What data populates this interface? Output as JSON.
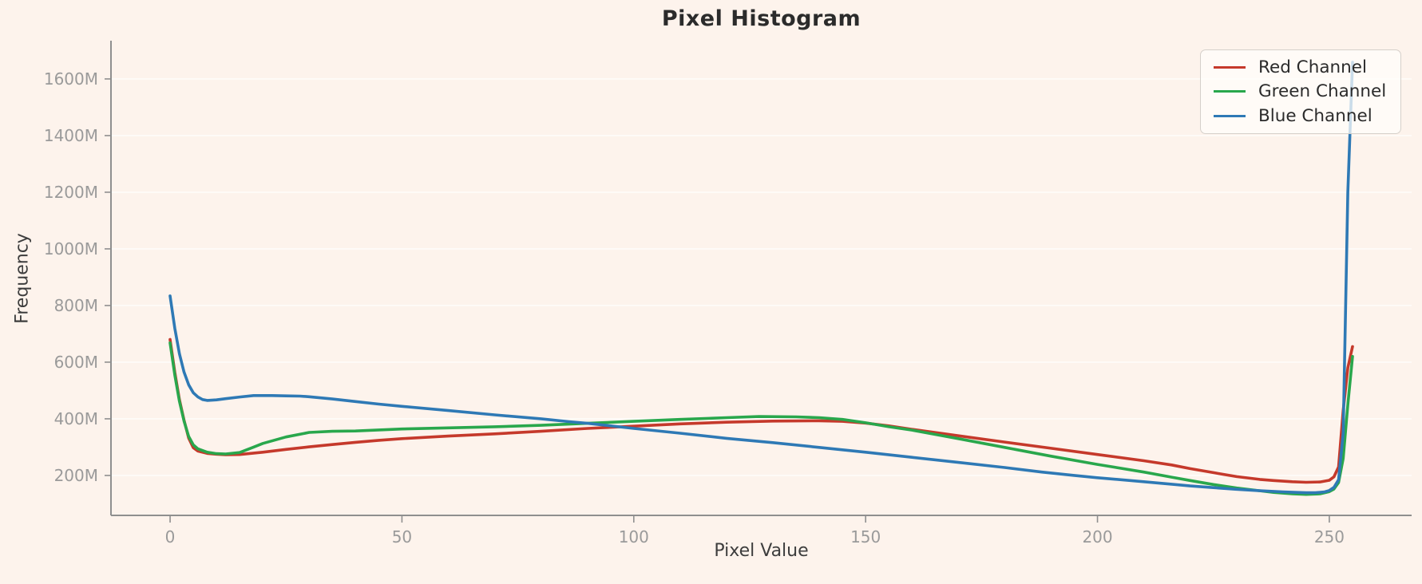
{
  "figure": {
    "title": "Pixel Histogram",
    "xlabel": "Pixel Value",
    "ylabel": "Frequency",
    "background_color": "#fdf3ec"
  },
  "style": {
    "grid_color": "rgba(255,255,255,0.85)",
    "spine_color": "#8f8f8f",
    "tick_color": "#8f8f8f",
    "tick_label_color": "#9a9a9a",
    "title_color": "#2b2b2b",
    "axis_label_color": "#3d3d3d",
    "legend_text_color": "#2b2b2b",
    "legend_border_color": "#d5d0ca",
    "legend_background": "rgba(255,254,251,0.75)"
  },
  "chart_data": {
    "type": "line",
    "title": "Pixel Histogram",
    "xlabel": "Pixel Value",
    "ylabel": "Frequency",
    "grid": "horizontal-only",
    "legend_position": "upper right",
    "x_ticks": [
      0,
      50,
      100,
      150,
      200,
      250
    ],
    "y_ticks": [
      200,
      400,
      600,
      800,
      1000,
      1200,
      1400,
      1600
    ],
    "y_tick_suffix": "M",
    "y_unit": "millions of pixels",
    "xlim": [
      -12.75,
      267.75
    ],
    "ylim_millions": [
      59,
      1735
    ],
    "series": [
      {
        "name": "Red Channel",
        "color": "#c5392b",
        "points": [
          [
            0,
            680
          ],
          [
            1,
            565
          ],
          [
            2,
            468
          ],
          [
            3,
            395
          ],
          [
            4,
            332
          ],
          [
            5,
            298
          ],
          [
            6,
            286
          ],
          [
            8,
            278
          ],
          [
            10,
            275
          ],
          [
            12,
            273
          ],
          [
            15,
            274
          ],
          [
            20,
            282
          ],
          [
            25,
            292
          ],
          [
            30,
            301
          ],
          [
            35,
            309
          ],
          [
            40,
            317
          ],
          [
            45,
            324
          ],
          [
            50,
            330
          ],
          [
            60,
            339
          ],
          [
            70,
            347
          ],
          [
            80,
            356
          ],
          [
            90,
            366
          ],
          [
            100,
            374
          ],
          [
            110,
            382
          ],
          [
            120,
            388
          ],
          [
            130,
            392
          ],
          [
            140,
            393
          ],
          [
            145,
            391
          ],
          [
            150,
            385
          ],
          [
            155,
            375
          ],
          [
            160,
            363
          ],
          [
            170,
            340
          ],
          [
            180,
            318
          ],
          [
            190,
            296
          ],
          [
            200,
            274
          ],
          [
            210,
            252
          ],
          [
            216,
            237
          ],
          [
            220,
            224
          ],
          [
            225,
            210
          ],
          [
            230,
            196
          ],
          [
            235,
            186
          ],
          [
            238,
            182
          ],
          [
            242,
            178
          ],
          [
            245,
            176
          ],
          [
            248,
            177
          ],
          [
            250,
            183
          ],
          [
            251,
            195
          ],
          [
            252,
            230
          ],
          [
            253,
            430
          ],
          [
            254,
            580
          ],
          [
            255,
            655
          ]
        ]
      },
      {
        "name": "Green Channel",
        "color": "#29a74c",
        "points": [
          [
            0,
            668
          ],
          [
            1,
            555
          ],
          [
            2,
            462
          ],
          [
            3,
            392
          ],
          [
            4,
            338
          ],
          [
            5,
            308
          ],
          [
            6,
            294
          ],
          [
            8,
            282
          ],
          [
            10,
            277
          ],
          [
            12,
            276
          ],
          [
            15,
            281
          ],
          [
            18,
            300
          ],
          [
            20,
            313
          ],
          [
            25,
            336
          ],
          [
            30,
            352
          ],
          [
            35,
            356
          ],
          [
            40,
            357
          ],
          [
            50,
            364
          ],
          [
            60,
            368
          ],
          [
            70,
            372
          ],
          [
            80,
            377
          ],
          [
            90,
            384
          ],
          [
            100,
            391
          ],
          [
            110,
            398
          ],
          [
            120,
            404
          ],
          [
            127,
            408
          ],
          [
            135,
            407
          ],
          [
            140,
            404
          ],
          [
            145,
            398
          ],
          [
            150,
            386
          ],
          [
            155,
            372
          ],
          [
            160,
            360
          ],
          [
            165,
            345
          ],
          [
            170,
            330
          ],
          [
            180,
            299
          ],
          [
            190,
            268
          ],
          [
            200,
            239
          ],
          [
            210,
            212
          ],
          [
            216,
            194
          ],
          [
            220,
            182
          ],
          [
            225,
            168
          ],
          [
            230,
            156
          ],
          [
            235,
            146
          ],
          [
            238,
            140
          ],
          [
            242,
            135
          ],
          [
            245,
            133
          ],
          [
            248,
            135
          ],
          [
            250,
            143
          ],
          [
            251,
            152
          ],
          [
            252,
            175
          ],
          [
            253,
            260
          ],
          [
            254,
            450
          ],
          [
            255,
            620
          ]
        ]
      },
      {
        "name": "Blue Channel",
        "color": "#2e79b5",
        "points": [
          [
            0,
            834
          ],
          [
            1,
            720
          ],
          [
            2,
            630
          ],
          [
            3,
            565
          ],
          [
            4,
            520
          ],
          [
            5,
            492
          ],
          [
            6,
            477
          ],
          [
            7,
            468
          ],
          [
            8,
            465
          ],
          [
            10,
            467
          ],
          [
            12,
            471
          ],
          [
            15,
            477
          ],
          [
            18,
            482
          ],
          [
            22,
            482
          ],
          [
            25,
            481
          ],
          [
            28,
            480
          ],
          [
            30,
            478
          ],
          [
            35,
            470
          ],
          [
            40,
            461
          ],
          [
            45,
            452
          ],
          [
            50,
            444
          ],
          [
            60,
            429
          ],
          [
            70,
            414
          ],
          [
            80,
            400
          ],
          [
            86,
            390
          ],
          [
            90,
            384
          ],
          [
            100,
            366
          ],
          [
            110,
            349
          ],
          [
            120,
            331
          ],
          [
            130,
            316
          ],
          [
            140,
            299
          ],
          [
            150,
            282
          ],
          [
            160,
            264
          ],
          [
            170,
            246
          ],
          [
            180,
            228
          ],
          [
            188,
            212
          ],
          [
            195,
            200
          ],
          [
            200,
            192
          ],
          [
            210,
            178
          ],
          [
            216,
            169
          ],
          [
            220,
            163
          ],
          [
            225,
            157
          ],
          [
            230,
            151
          ],
          [
            235,
            146
          ],
          [
            240,
            142
          ],
          [
            243,
            140
          ],
          [
            245,
            139
          ],
          [
            247,
            139
          ],
          [
            249,
            142
          ],
          [
            250,
            147
          ],
          [
            251,
            158
          ],
          [
            252,
            185
          ],
          [
            253,
            350
          ],
          [
            254,
            1200
          ],
          [
            255,
            1659
          ]
        ]
      }
    ]
  }
}
